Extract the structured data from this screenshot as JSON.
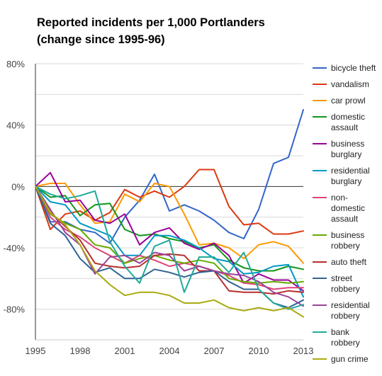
{
  "chart_data": {
    "type": "line",
    "title_line1": "Reported incidents per 1,000 Portlanders",
    "title_line2": "(change since 1995-96)",
    "xlabel": "",
    "ylabel": "",
    "x": [
      1995,
      1996,
      1997,
      1998,
      1999,
      2000,
      2001,
      2002,
      2003,
      2004,
      2005,
      2006,
      2007,
      2008,
      2009,
      2010,
      2011,
      2012,
      2013
    ],
    "xlim": [
      1995,
      2013
    ],
    "ylim": [
      -100,
      80
    ],
    "x_ticks": [
      "1995",
      "1998",
      "2001",
      "2004",
      "2007",
      "2010",
      "2013"
    ],
    "x_tick_values": [
      1995,
      1998,
      2001,
      2004,
      2007,
      2010,
      2013
    ],
    "y_ticks": [
      "80%",
      "40%",
      "0%",
      "-40%",
      "-80%"
    ],
    "y_tick_values": [
      80,
      40,
      0,
      -40,
      -80
    ],
    "grid": "horizontal",
    "legend_position": "right",
    "series": [
      {
        "name": "bicycle theft",
        "color": "#3366cc",
        "legend_lines": [
          "bicycle theft"
        ],
        "values": [
          0,
          -23,
          -23,
          -28,
          -30,
          -37,
          -20,
          -9,
          8,
          -16,
          -12,
          -16,
          -22,
          -30,
          -34,
          -15,
          15,
          19,
          50
        ]
      },
      {
        "name": "vandalism",
        "color": "#dc3912",
        "legend_lines": [
          "vandalism"
        ],
        "values": [
          0,
          -28,
          -18,
          -16,
          -22,
          -17,
          -2,
          -7,
          -3,
          -7,
          0,
          11,
          11,
          -13,
          -25,
          -24,
          -31,
          -31,
          -29
        ]
      },
      {
        "name": "car prowl",
        "color": "#ff9900",
        "legend_lines": [
          "car prowl"
        ],
        "values": [
          0,
          2,
          2,
          -12,
          -24,
          -23,
          -5,
          -10,
          2,
          0,
          -18,
          -38,
          -37,
          -40,
          -47,
          -38,
          -36,
          -39,
          -50
        ]
      },
      {
        "name": "domestic assault",
        "color": "#109618",
        "legend_lines": [
          "domestic",
          "assault"
        ],
        "values": [
          0,
          -7,
          -6,
          -19,
          -12,
          -11,
          -28,
          -32,
          -31,
          -34,
          -36,
          -40,
          -38,
          -48,
          -53,
          -55,
          -55,
          -52,
          -54
        ]
      },
      {
        "name": "business burglary",
        "color": "#990099",
        "legend_lines": [
          "business",
          "burglary"
        ],
        "values": [
          0,
          9,
          -10,
          -9,
          -22,
          -24,
          -18,
          -38,
          -30,
          -27,
          -37,
          -41,
          -37,
          -45,
          -63,
          -57,
          -61,
          -61,
          -68
        ]
      },
      {
        "name": "residential burglary",
        "color": "#0099c6",
        "legend_lines": [
          "residential",
          "burglary"
        ],
        "values": [
          0,
          -10,
          -12,
          -24,
          -28,
          -32,
          -45,
          -45,
          -32,
          -32,
          -35,
          -40,
          -47,
          -49,
          -57,
          -56,
          -52,
          -51,
          -72
        ]
      },
      {
        "name": "non-domestic assault",
        "color": "#dd4477",
        "legend_lines": [
          "non-",
          "domestic",
          "assault"
        ],
        "values": [
          0,
          -20,
          -28,
          -33,
          -40,
          -45,
          -50,
          -45,
          -48,
          -52,
          -50,
          -52,
          -55,
          -58,
          -63,
          -64,
          -67,
          -66,
          -66
        ]
      },
      {
        "name": "business robbery",
        "color": "#66aa00",
        "legend_lines": [
          "business",
          "robbery"
        ],
        "values": [
          0,
          -18,
          -24,
          -28,
          -38,
          -40,
          -50,
          -47,
          -45,
          -48,
          -50,
          -48,
          -50,
          -60,
          -62,
          -63,
          -62,
          -63,
          -62
        ]
      },
      {
        "name": "auto theft",
        "color": "#b82e2e",
        "legend_lines": [
          "auto theft"
        ],
        "values": [
          0,
          -17,
          -26,
          -35,
          -50,
          -52,
          -53,
          -52,
          -45,
          -44,
          -45,
          -55,
          -55,
          -68,
          -69,
          -69,
          -70,
          -68,
          -69
        ]
      },
      {
        "name": "street robbery",
        "color": "#316395",
        "legend_lines": [
          "street",
          "robbery"
        ],
        "values": [
          0,
          -24,
          -32,
          -47,
          -56,
          -53,
          -60,
          -60,
          -54,
          -56,
          -59,
          -56,
          -55,
          -62,
          -67,
          -67,
          -76,
          -79,
          -74
        ]
      },
      {
        "name": "residential robbery",
        "color": "#994499",
        "legend_lines": [
          "residential",
          "robbery"
        ],
        "values": [
          0,
          -15,
          -30,
          -38,
          -57,
          -46,
          -45,
          -50,
          -43,
          -45,
          -55,
          -52,
          -55,
          -57,
          -58,
          -62,
          -69,
          -72,
          -78
        ]
      },
      {
        "name": "bank robbery",
        "color": "#22aa99",
        "legend_lines": [
          "bank",
          "robbery"
        ],
        "values": [
          0,
          -5,
          -8,
          -6,
          -3,
          -36,
          -52,
          -63,
          -39,
          -35,
          -69,
          -46,
          -46,
          -56,
          -43,
          -67,
          -76,
          -80,
          -77
        ]
      },
      {
        "name": "gun crime",
        "color": "#aaaa11",
        "legend_lines": [
          "gun crime"
        ],
        "values": [
          0,
          -17,
          -25,
          -38,
          -55,
          -64,
          -71,
          -69,
          -69,
          -71,
          -76,
          -76,
          -74,
          -79,
          -81,
          -79,
          -81,
          -79,
          -85
        ]
      }
    ]
  }
}
